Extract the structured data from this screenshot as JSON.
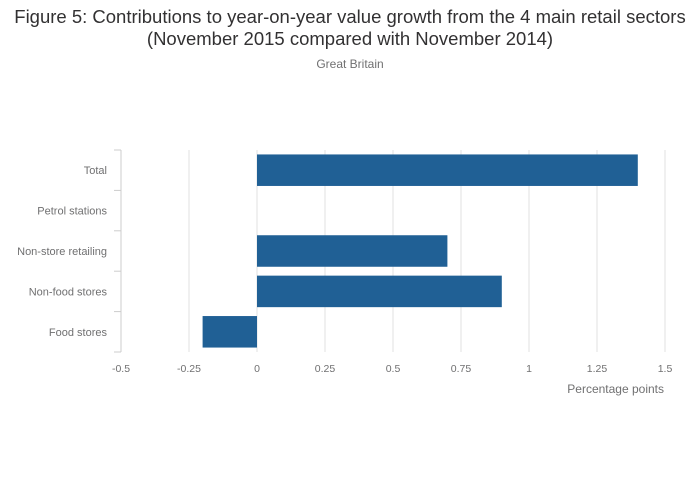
{
  "chart_data": {
    "type": "bar",
    "orientation": "horizontal",
    "title": "Figure 5: Contributions to year-on-year value growth from the 4 main retail sectors (November 2015 compared with November 2014)",
    "subtitle": "Great Britain",
    "xlabel": "Percentage points",
    "ylabel": "",
    "categories": [
      "Total",
      "Petrol stations",
      "Non-store retailing",
      "Non-food stores",
      "Food stores"
    ],
    "values": [
      1.4,
      0,
      0.7,
      0.9,
      -0.2
    ],
    "xlim": [
      -0.5,
      1.5
    ],
    "xticks": [
      -0.5,
      -0.25,
      0,
      0.25,
      0.5,
      0.75,
      1,
      1.25,
      1.5
    ],
    "xtick_labels": [
      "-0.5",
      "-0.25",
      "0",
      "0.25",
      "0.5",
      "0.75",
      "1",
      "1.25",
      "1.5"
    ],
    "grid": true,
    "legend": "none",
    "colors": {
      "bar": "#206095",
      "grid": "#e0e0e0",
      "axis": "#cccccc",
      "tick_text": "#707071",
      "title_text": "#323132"
    }
  }
}
